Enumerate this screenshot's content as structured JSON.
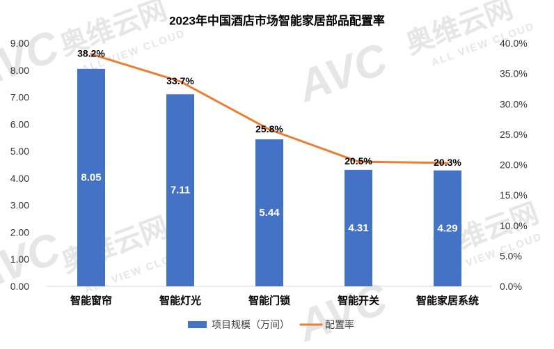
{
  "chart_data": {
    "type": "bar",
    "title": "2023年中国酒店市场智能家居部品配置率",
    "categories": [
      "智能窗帘",
      "智能灯光",
      "智能门锁",
      "智能开关",
      "智能家居系统"
    ],
    "series": [
      {
        "name": "项目规模（万间）",
        "type": "bar",
        "axis": "left",
        "values": [
          8.05,
          7.11,
          5.44,
          4.31,
          4.29
        ],
        "labels": [
          "8.05",
          "7.11",
          "5.44",
          "4.31",
          "4.29"
        ],
        "color": "#4472C4"
      },
      {
        "name": "配置率",
        "type": "line",
        "axis": "right",
        "values": [
          38.2,
          33.7,
          25.8,
          20.5,
          20.3
        ],
        "labels": [
          "38.2%",
          "33.7%",
          "25.8%",
          "20.5%",
          "20.3%"
        ],
        "color": "#ED7D31"
      }
    ],
    "y_left": {
      "min": 0,
      "max": 9,
      "step": 1,
      "tick_labels": [
        "0.00",
        "1.00",
        "2.00",
        "3.00",
        "4.00",
        "5.00",
        "6.00",
        "7.00",
        "8.00",
        "9.00"
      ]
    },
    "y_right": {
      "min": 0,
      "max": 40,
      "step": 5,
      "tick_labels": [
        "0.0%",
        "5.0%",
        "10.0%",
        "15.0%",
        "20.0%",
        "25.0%",
        "30.0%",
        "35.0%",
        "40.0%"
      ]
    },
    "grid": false,
    "legend": "bottom"
  },
  "watermark": {
    "logo": "AVC",
    "name_cn": "奥维云网",
    "name_en": "ALL VIEW CLOUD"
  }
}
